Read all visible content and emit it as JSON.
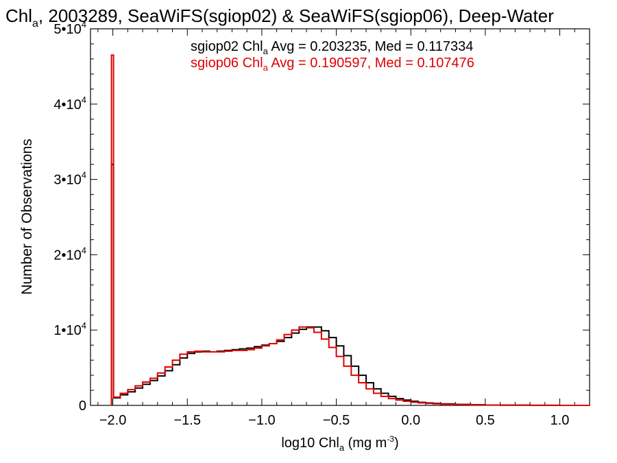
{
  "colors": {
    "background": "#ffffff",
    "axes": "#000000",
    "sgiop02": "#000000",
    "sgiop06": "#e00000"
  },
  "chart_data": {
    "type": "line",
    "title": {
      "prefix": "Chl",
      "sub": "a",
      "rest": ", 2003289, SeaWiFS(sgiop02) & SeaWiFS(sgiop06), Deep-Water"
    },
    "xlabel": {
      "prefix": "log10 Chl",
      "sub": "a",
      "mid": " (mg m",
      "sup": "-3",
      "suffix": ")"
    },
    "ylabel": "Number of Observations",
    "xlim": [
      -2.15,
      1.2
    ],
    "ylim": [
      0,
      50000
    ],
    "x_ticks": [
      {
        "value": -2.0,
        "label": "−2.0"
      },
      {
        "value": -1.5,
        "label": "−1.5"
      },
      {
        "value": -1.0,
        "label": "−1.0"
      },
      {
        "value": -0.5,
        "label": "−0.5"
      },
      {
        "value": 0.0,
        "label": "0.0"
      },
      {
        "value": 0.5,
        "label": "0.5"
      },
      {
        "value": 1.0,
        "label": "1.0"
      }
    ],
    "y_ticks": [
      {
        "value": 0,
        "base": "0",
        "exp": ""
      },
      {
        "value": 10000,
        "base": "1•10",
        "exp": "4"
      },
      {
        "value": 20000,
        "base": "2•10",
        "exp": "4"
      },
      {
        "value": 30000,
        "base": "3•10",
        "exp": "4"
      },
      {
        "value": 40000,
        "base": "4•10",
        "exp": "4"
      },
      {
        "value": 50000,
        "base": "5•10",
        "exp": "4"
      }
    ],
    "legend_position": "top-right",
    "series": [
      {
        "name": "sgiop02",
        "legend": {
          "prefix": "sgiop02 Chl",
          "sub": "a",
          "rest": " Avg = 0.203235, Med = 0.117334"
        },
        "color": "#000000",
        "spike": {
          "x": -2.0,
          "y": 32000
        },
        "x": [
          -2.0,
          -1.95,
          -1.9,
          -1.85,
          -1.8,
          -1.75,
          -1.7,
          -1.65,
          -1.6,
          -1.55,
          -1.5,
          -1.45,
          -1.4,
          -1.35,
          -1.3,
          -1.25,
          -1.2,
          -1.15,
          -1.1,
          -1.05,
          -1.0,
          -0.95,
          -0.9,
          -0.85,
          -0.8,
          -0.75,
          -0.7,
          -0.65,
          -0.6,
          -0.55,
          -0.5,
          -0.45,
          -0.4,
          -0.35,
          -0.3,
          -0.25,
          -0.2,
          -0.15,
          -0.1,
          -0.05,
          0.0,
          0.05,
          0.1,
          0.15,
          0.2,
          0.3,
          0.4,
          0.5,
          0.6,
          0.8,
          1.0,
          1.2
        ],
        "y": [
          1000,
          1400,
          1800,
          2300,
          2800,
          3300,
          3900,
          4600,
          5400,
          6300,
          6900,
          7100,
          7200,
          7100,
          7200,
          7300,
          7400,
          7500,
          7600,
          7800,
          8000,
          8200,
          8500,
          9000,
          9600,
          10100,
          10400,
          10400,
          9900,
          9000,
          7900,
          6600,
          5200,
          4000,
          3000,
          2200,
          1600,
          1200,
          900,
          700,
          550,
          400,
          320,
          260,
          200,
          140,
          90,
          50,
          30,
          15,
          5,
          0
        ]
      },
      {
        "name": "sgiop06",
        "legend": {
          "prefix": "sgiop06 Chl",
          "sub": "a",
          "rest": " Avg = 0.190597, Med = 0.107476"
        },
        "color": "#e00000",
        "spike": {
          "x": -2.0,
          "y": 46500
        },
        "x": [
          -2.0,
          -1.95,
          -1.9,
          -1.85,
          -1.8,
          -1.75,
          -1.7,
          -1.65,
          -1.6,
          -1.55,
          -1.5,
          -1.45,
          -1.4,
          -1.35,
          -1.3,
          -1.25,
          -1.2,
          -1.15,
          -1.1,
          -1.05,
          -1.0,
          -0.95,
          -0.9,
          -0.85,
          -0.8,
          -0.75,
          -0.7,
          -0.65,
          -0.6,
          -0.55,
          -0.5,
          -0.45,
          -0.4,
          -0.35,
          -0.3,
          -0.25,
          -0.2,
          -0.15,
          -0.1,
          -0.05,
          0.0,
          0.05,
          0.1,
          0.15,
          0.2,
          0.3,
          0.4,
          0.5,
          0.6,
          0.8,
          1.0,
          1.2
        ],
        "y": [
          1100,
          1600,
          2100,
          2600,
          3100,
          3600,
          4300,
          5100,
          6000,
          6800,
          7100,
          7200,
          7100,
          7100,
          7100,
          7200,
          7300,
          7300,
          7400,
          7600,
          7900,
          8200,
          8700,
          9400,
          10000,
          10400,
          10300,
          9700,
          8800,
          7700,
          6500,
          5200,
          4000,
          3000,
          2200,
          1600,
          1200,
          900,
          700,
          550,
          420,
          330,
          260,
          200,
          160,
          110,
          70,
          40,
          25,
          10,
          3,
          0
        ]
      }
    ]
  }
}
